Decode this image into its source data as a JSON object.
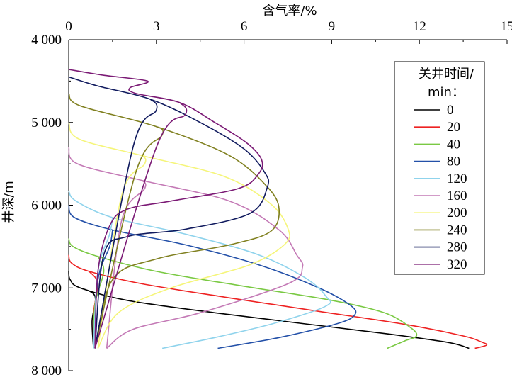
{
  "chart_data": {
    "type": "line",
    "x_axis": {
      "label": "含气率/%",
      "position": "top",
      "range": [
        0,
        15
      ],
      "ticks": [
        0,
        3,
        6,
        9,
        12,
        15
      ],
      "tick_labels": [
        "0",
        "3",
        "6",
        "9",
        "12",
        "15"
      ]
    },
    "y_axis": {
      "label": "井深/m",
      "range": [
        4000,
        8000
      ],
      "inverted": true,
      "ticks": [
        4000,
        5000,
        6000,
        7000,
        8000
      ],
      "tick_labels": [
        "4 000",
        "5 000",
        "6 000",
        "7 000",
        "8 000"
      ]
    },
    "grid": false,
    "legend": {
      "title_line1": "关井时间/",
      "title_line2": "min：",
      "placement": "top-right"
    },
    "series": [
      {
        "name": "0",
        "color": "#000000",
        "points": [
          [
            0,
            6800
          ],
          [
            0.05,
            6900
          ],
          [
            0.4,
            7000
          ],
          [
            2,
            7150
          ],
          [
            5,
            7300
          ],
          [
            8,
            7430
          ],
          [
            11,
            7560
          ],
          [
            13,
            7660
          ],
          [
            13.7,
            7730
          ]
        ],
        "tail": [
          [
            0.4,
            7000
          ],
          [
            0.9,
            7100
          ],
          [
            0.8,
            7400
          ],
          [
            0.85,
            7730
          ]
        ]
      },
      {
        "name": "20",
        "color": "#ee2222",
        "points": [
          [
            0,
            6600
          ],
          [
            0.1,
            6700
          ],
          [
            0.7,
            6800
          ],
          [
            2.5,
            6950
          ],
          [
            5.5,
            7120
          ],
          [
            8.5,
            7280
          ],
          [
            11.5,
            7440
          ],
          [
            13.5,
            7580
          ],
          [
            14.1,
            7650
          ],
          [
            14.3,
            7690
          ],
          [
            13.9,
            7730
          ]
        ],
        "tail": [
          [
            0.7,
            6800
          ],
          [
            1.0,
            6950
          ],
          [
            0.85,
            7300
          ],
          [
            0.85,
            7730
          ]
        ]
      },
      {
        "name": "40",
        "color": "#7ac943",
        "points": [
          [
            0,
            6400
          ],
          [
            0.15,
            6500
          ],
          [
            1,
            6620
          ],
          [
            3,
            6800
          ],
          [
            6,
            6980
          ],
          [
            9,
            7150
          ],
          [
            10.8,
            7300
          ],
          [
            11.7,
            7480
          ],
          [
            11.9,
            7580
          ],
          [
            11.5,
            7640
          ],
          [
            10.9,
            7730
          ]
        ],
        "tail": [
          [
            1,
            6620
          ],
          [
            1.2,
            6800
          ],
          [
            0.9,
            7200
          ],
          [
            0.85,
            7730
          ]
        ]
      },
      {
        "name": "80",
        "color": "#2350a8",
        "points": [
          [
            0,
            6000
          ],
          [
            0.2,
            6150
          ],
          [
            1.5,
            6300
          ],
          [
            4,
            6480
          ],
          [
            6.5,
            6720
          ],
          [
            8.5,
            6990
          ],
          [
            9.6,
            7200
          ],
          [
            9.8,
            7320
          ],
          [
            9.2,
            7430
          ],
          [
            7.2,
            7600
          ],
          [
            5.1,
            7730
          ]
        ],
        "tail": [
          [
            1.5,
            6300
          ],
          [
            1.4,
            6500
          ],
          [
            1.0,
            6900
          ],
          [
            0.85,
            7730
          ]
        ]
      },
      {
        "name": "120",
        "color": "#8fd3ec",
        "points": [
          [
            0,
            5830
          ],
          [
            0.25,
            5950
          ],
          [
            1.5,
            6150
          ],
          [
            4,
            6350
          ],
          [
            6.5,
            6600
          ],
          [
            8.1,
            6880
          ],
          [
            8.8,
            7100
          ],
          [
            8.8,
            7220
          ],
          [
            7,
            7430
          ],
          [
            5,
            7600
          ],
          [
            3.2,
            7730
          ]
        ],
        "tail": [
          [
            1.5,
            6150
          ],
          [
            1.4,
            6350
          ],
          [
            1.0,
            6800
          ],
          [
            0.85,
            7730
          ]
        ]
      },
      {
        "name": "160",
        "color": "#c47ab6",
        "points": [
          [
            0,
            5300
          ],
          [
            0.3,
            5500
          ],
          [
            2.5,
            5700
          ],
          [
            5.5,
            5950
          ],
          [
            7.2,
            6300
          ],
          [
            7.8,
            6600
          ],
          [
            8,
            6750
          ],
          [
            7.5,
            6950
          ],
          [
            4.5,
            7300
          ],
          [
            2.2,
            7500
          ],
          [
            1.3,
            7730
          ]
        ],
        "tail": [
          [
            2.5,
            5700
          ],
          [
            2.6,
            5800
          ],
          [
            1.8,
            6200
          ],
          [
            1.3,
            7730
          ]
        ]
      },
      {
        "name": "200",
        "color": "#f5f57a",
        "points": [
          [
            0,
            5000
          ],
          [
            0.35,
            5200
          ],
          [
            2.5,
            5400
          ],
          [
            5.3,
            5650
          ],
          [
            6.9,
            5980
          ],
          [
            7.5,
            6280
          ],
          [
            7.4,
            6470
          ],
          [
            6.2,
            6720
          ],
          [
            3.5,
            7000
          ],
          [
            1.7,
            7300
          ],
          [
            1.0,
            7730
          ]
        ],
        "tail": [
          [
            2.5,
            5400
          ],
          [
            2.6,
            5500
          ],
          [
            1.8,
            5900
          ],
          [
            1.0,
            7730
          ]
        ]
      },
      {
        "name": "240",
        "color": "#808020",
        "points": [
          [
            0,
            4650
          ],
          [
            0.4,
            4800
          ],
          [
            3,
            5050
          ],
          [
            5.5,
            5400
          ],
          [
            6.8,
            5780
          ],
          [
            7.2,
            6050
          ],
          [
            6.9,
            6320
          ],
          [
            5.5,
            6480
          ],
          [
            3.0,
            6650
          ],
          [
            1.5,
            6900
          ],
          [
            0.9,
            7730
          ]
        ],
        "tail": [
          [
            3,
            5050
          ],
          [
            3.2,
            5150
          ],
          [
            2.3,
            5600
          ],
          [
            0.9,
            7730
          ]
        ]
      },
      {
        "name": "280",
        "color": "#101a5e",
        "points": [
          [
            0,
            4450
          ],
          [
            1,
            4560
          ],
          [
            2.8,
            4720
          ],
          [
            4.5,
            5000
          ],
          [
            6,
            5320
          ],
          [
            6.7,
            5600
          ],
          [
            6.8,
            5780
          ],
          [
            6.2,
            6100
          ],
          [
            4,
            6290
          ],
          [
            2,
            6380
          ],
          [
            1.2,
            6600
          ],
          [
            0.9,
            7730
          ]
        ],
        "tail": [
          [
            2.8,
            4720
          ],
          [
            3.0,
            4850
          ],
          [
            2.2,
            5300
          ],
          [
            0.9,
            7730
          ]
        ]
      },
      {
        "name": "320",
        "color": "#7b1a75",
        "points": [
          [
            0,
            4360
          ],
          [
            1.2,
            4430
          ],
          [
            2.7,
            4500
          ],
          [
            2.1,
            4580
          ],
          [
            2.3,
            4650
          ],
          [
            3.8,
            4760
          ],
          [
            5,
            5000
          ],
          [
            6.1,
            5250
          ],
          [
            6.6,
            5450
          ],
          [
            6.5,
            5620
          ],
          [
            5.8,
            5800
          ],
          [
            3.5,
            5950
          ],
          [
            2.0,
            6050
          ],
          [
            1.4,
            6250
          ],
          [
            1.0,
            6800
          ],
          [
            0.9,
            7730
          ]
        ],
        "tail": [
          [
            3.8,
            4760
          ],
          [
            4.0,
            4900
          ],
          [
            3.0,
            5300
          ],
          [
            0.9,
            7730
          ]
        ]
      }
    ]
  }
}
